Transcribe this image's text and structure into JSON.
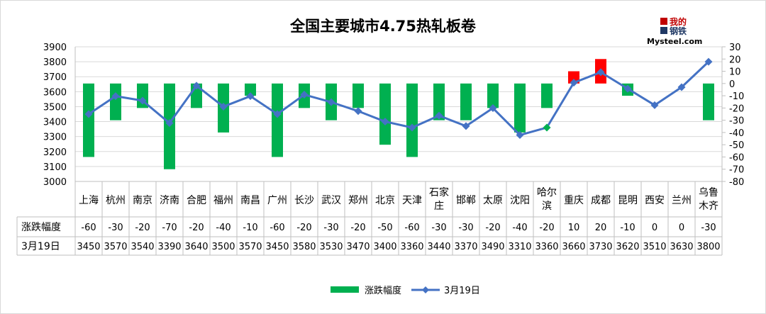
{
  "logo": {
    "line1": "我的",
    "line2": "钢铁",
    "url": "Mysteel.com"
  },
  "chart_data": {
    "type": "bar+line",
    "title": "全国主要城市4.75热轧板卷",
    "categories": [
      "上海",
      "杭州",
      "南京",
      "济南",
      "合肥",
      "福州",
      "南昌",
      "广州",
      "长沙",
      "武汉",
      "郑州",
      "北京",
      "天津",
      "石家庄",
      "邯郸",
      "太原",
      "沈阳",
      "哈尔滨",
      "重庆",
      "成都",
      "昆明",
      "西安",
      "兰州",
      "乌鲁木齐"
    ],
    "category_lines": [
      [
        "上海"
      ],
      [
        "杭州"
      ],
      [
        "南京"
      ],
      [
        "济南"
      ],
      [
        "合肥"
      ],
      [
        "福州"
      ],
      [
        "南昌"
      ],
      [
        "广州"
      ],
      [
        "长沙"
      ],
      [
        "武汉"
      ],
      [
        "郑州"
      ],
      [
        "北京"
      ],
      [
        "天津"
      ],
      [
        "石家",
        "庄"
      ],
      [
        "邯郸"
      ],
      [
        "太原"
      ],
      [
        "沈阳"
      ],
      [
        "哈尔",
        "滨"
      ],
      [
        "重庆"
      ],
      [
        "成都"
      ],
      [
        "昆明"
      ],
      [
        "西安"
      ],
      [
        "兰州"
      ],
      [
        "乌鲁",
        "木齐"
      ]
    ],
    "series": [
      {
        "name": "涨跌幅度",
        "kind": "bar",
        "axis": "right",
        "values": [
          -60,
          -30,
          -20,
          -70,
          -20,
          -40,
          -10,
          -60,
          -20,
          -30,
          -20,
          -50,
          -60,
          -30,
          -30,
          -20,
          -40,
          -20,
          10,
          20,
          -10,
          0,
          0,
          -30
        ]
      },
      {
        "name": "3月19日",
        "kind": "line",
        "axis": "left",
        "values": [
          3450,
          3570,
          3540,
          3390,
          3640,
          3500,
          3570,
          3450,
          3580,
          3530,
          3470,
          3400,
          3360,
          3440,
          3370,
          3490,
          3310,
          3360,
          3660,
          3730,
          3620,
          3510,
          3630,
          3800
        ]
      }
    ],
    "left_axis": {
      "min": 3000,
      "max": 3900,
      "step": 100,
      "ticks": [
        "3000",
        "3100",
        "3200",
        "3300",
        "3400",
        "3500",
        "3600",
        "3700",
        "3800",
        "3900"
      ]
    },
    "right_axis": {
      "min": -80,
      "max": 30,
      "step": 10,
      "ticks": [
        "-80",
        "-70",
        "-60",
        "-50",
        "-40",
        "-30",
        "-20",
        "-10",
        "0",
        "10",
        "20",
        "30"
      ]
    },
    "legend_position": "bottom-center",
    "colors": {
      "down": "#00b050",
      "up": "#ff0000",
      "line": "#4472c4",
      "last_marker": "#00b050"
    }
  }
}
